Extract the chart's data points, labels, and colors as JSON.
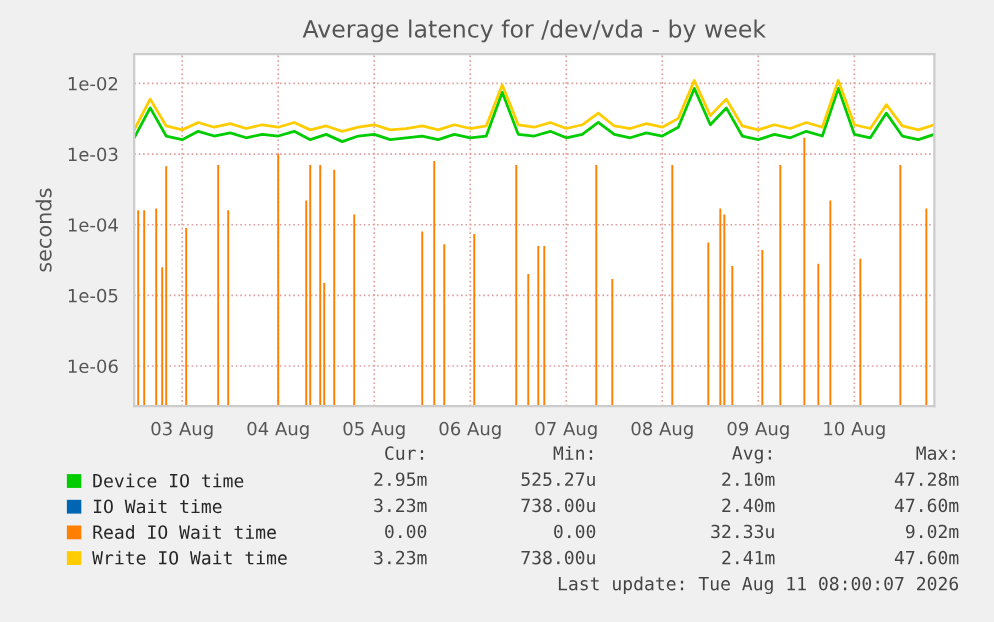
{
  "chart_data": {
    "type": "line",
    "title": "Average latency for /dev/vda - by week",
    "ylabel": "seconds",
    "log": "y",
    "grid": true,
    "legend": "bottom",
    "line_style": "solid",
    "marker": "none",
    "x": [
      "2026-08-03T00:00",
      "2026-08-03T04:00",
      "2026-08-03T08:00",
      "2026-08-03T12:00",
      "2026-08-03T16:00",
      "2026-08-03T20:00",
      "2026-08-04T00:00",
      "2026-08-04T04:00",
      "2026-08-04T08:00",
      "2026-08-04T12:00",
      "2026-08-04T16:00",
      "2026-08-04T20:00",
      "2026-08-05T00:00",
      "2026-08-05T04:00",
      "2026-08-05T08:00",
      "2026-08-05T12:00",
      "2026-08-05T16:00",
      "2026-08-05T20:00",
      "2026-08-06T00:00",
      "2026-08-06T04:00",
      "2026-08-06T08:00",
      "2026-08-06T12:00",
      "2026-08-06T16:00",
      "2026-08-06T20:00",
      "2026-08-07T00:00",
      "2026-08-07T04:00",
      "2026-08-07T08:00",
      "2026-08-07T12:00",
      "2026-08-07T16:00",
      "2026-08-07T20:00",
      "2026-08-08T00:00",
      "2026-08-08T04:00",
      "2026-08-08T08:00",
      "2026-08-08T12:00",
      "2026-08-08T16:00",
      "2026-08-08T20:00",
      "2026-08-09T00:00",
      "2026-08-09T04:00",
      "2026-08-09T08:00",
      "2026-08-09T12:00",
      "2026-08-09T16:00",
      "2026-08-09T20:00",
      "2026-08-10T00:00",
      "2026-08-10T04:00",
      "2026-08-10T08:00",
      "2026-08-10T12:00",
      "2026-08-10T16:00",
      "2026-08-10T20:00",
      "2026-08-11T00:00",
      "2026-08-11T04:00",
      "2026-08-11T08:00"
    ],
    "xlim": [
      "2026-08-03T00:00",
      "2026-08-11T08:00"
    ],
    "xticks": [
      {
        "value": "2026-08-03T12:00",
        "label": "03 Aug"
      },
      {
        "value": "2026-08-04T12:00",
        "label": "04 Aug"
      },
      {
        "value": "2026-08-05T12:00",
        "label": "05 Aug"
      },
      {
        "value": "2026-08-06T12:00",
        "label": "06 Aug"
      },
      {
        "value": "2026-08-07T12:00",
        "label": "07 Aug"
      },
      {
        "value": "2026-08-08T12:00",
        "label": "08 Aug"
      },
      {
        "value": "2026-08-09T12:00",
        "label": "09 Aug"
      },
      {
        "value": "2026-08-10T12:00",
        "label": "10 Aug"
      }
    ],
    "ylim": [
      2.7e-07,
      0.026
    ],
    "yticks": [
      {
        "value": 1e-06,
        "label": "1e-06"
      },
      {
        "value": 1e-05,
        "label": "1e-05"
      },
      {
        "value": 0.0001,
        "label": "1e-04"
      },
      {
        "value": 0.001,
        "label": "1e-03"
      },
      {
        "value": 0.01,
        "label": "1e-02"
      }
    ],
    "series": [
      {
        "name": "Device IO time",
        "color": "#00cc00",
        "values": [
          0.0017,
          0.0045,
          0.0018,
          0.0016,
          0.0021,
          0.0018,
          0.002,
          0.0017,
          0.0019,
          0.0018,
          0.0021,
          0.0016,
          0.0019,
          0.0015,
          0.0018,
          0.0019,
          0.0016,
          0.0017,
          0.0018,
          0.0016,
          0.0019,
          0.0017,
          0.0018,
          0.0075,
          0.0019,
          0.0018,
          0.0021,
          0.0017,
          0.0019,
          0.0028,
          0.0019,
          0.0017,
          0.002,
          0.0018,
          0.0024,
          0.0085,
          0.0026,
          0.0045,
          0.0018,
          0.0016,
          0.0019,
          0.0017,
          0.0021,
          0.0018,
          0.0085,
          0.0019,
          0.0017,
          0.0038,
          0.0018,
          0.0016,
          0.0019
        ]
      },
      {
        "name": "IO Wait time",
        "color": "#0066b3",
        "values": [
          null,
          null,
          null,
          null,
          null,
          null,
          null,
          null,
          null,
          null,
          null,
          null,
          null,
          null,
          null,
          null,
          null,
          null,
          null,
          null,
          null,
          null,
          null,
          null,
          null,
          null,
          null,
          null,
          null,
          null,
          null,
          null,
          null,
          null,
          null,
          null,
          null,
          null,
          null,
          null,
          null,
          null,
          null,
          null,
          null,
          null,
          null,
          null,
          null,
          null,
          null
        ]
      },
      {
        "name": "Read IO Wait time",
        "color": "#ff8000",
        "type": "bar",
        "x": [
          "2026-08-03T01:00",
          "2026-08-03T02:30",
          "2026-08-03T05:30",
          "2026-08-03T07:00",
          "2026-08-03T08:00",
          "2026-08-03T13:00",
          "2026-08-03T21:00",
          "2026-08-03T23:30",
          "2026-08-04T12:00",
          "2026-08-04T19:00",
          "2026-08-04T20:00",
          "2026-08-04T22:30",
          "2026-08-04T23:30",
          "2026-08-05T02:00",
          "2026-08-05T07:00",
          "2026-08-06T00:00",
          "2026-08-06T03:00",
          "2026-08-06T05:30",
          "2026-08-06T13:00",
          "2026-08-06T23:30",
          "2026-08-07T02:30",
          "2026-08-07T05:00",
          "2026-08-07T06:30",
          "2026-08-07T19:30",
          "2026-08-07T23:30",
          "2026-08-08T14:30",
          "2026-08-08T23:30",
          "2026-08-09T02:30",
          "2026-08-09T03:30",
          "2026-08-09T05:30",
          "2026-08-09T13:00",
          "2026-08-09T17:30",
          "2026-08-09T23:30",
          "2026-08-10T03:00",
          "2026-08-10T06:00",
          "2026-08-10T13:30",
          "2026-08-10T23:30",
          "2026-08-11T06:00"
        ],
        "values": [
          0.00016,
          0.00016,
          0.00017,
          2.5e-05,
          0.00067,
          9e-05,
          0.0007,
          0.00016,
          0.001,
          0.00022,
          0.0007,
          0.0007,
          1.5e-05,
          0.0006,
          0.00014,
          8e-05,
          0.0008,
          5.3e-05,
          7.4e-05,
          0.0007,
          2e-05,
          5e-05,
          5e-05,
          0.0007,
          1.7e-05,
          0.0007,
          5.6e-05,
          0.00017,
          0.00014,
          2.6e-05,
          4.4e-05,
          0.0007,
          0.0017,
          2.8e-05,
          0.00022,
          3.3e-05,
          0.0007,
          0.00017
        ]
      },
      {
        "name": "Write IO Wait time",
        "color": "#ffcc00",
        "values": [
          0.0022,
          0.006,
          0.0025,
          0.0022,
          0.0028,
          0.0024,
          0.0027,
          0.0023,
          0.0026,
          0.0024,
          0.0028,
          0.0022,
          0.0025,
          0.0021,
          0.0024,
          0.0026,
          0.0022,
          0.0023,
          0.0025,
          0.0022,
          0.0026,
          0.0023,
          0.0025,
          0.0095,
          0.0026,
          0.0024,
          0.0028,
          0.0023,
          0.0026,
          0.0038,
          0.0025,
          0.0023,
          0.0027,
          0.0024,
          0.0032,
          0.011,
          0.0035,
          0.006,
          0.0025,
          0.0022,
          0.0026,
          0.0023,
          0.0028,
          0.0024,
          0.011,
          0.0026,
          0.0023,
          0.005,
          0.0025,
          0.0022,
          0.0026
        ]
      }
    ],
    "annotations": [
      "Cur:",
      "Min:",
      "Avg:",
      "Max:",
      "2.95m",
      "525.27u",
      "2.10m",
      "47.28m",
      "3.23m",
      "738.00u",
      "2.40m",
      "47.60m",
      "0.00",
      "0.00",
      "32.33u",
      "9.02m",
      "3.23m",
      "738.00u",
      "2.41m",
      "47.60m",
      "Last update: Tue Aug 11 08:00:07 2026"
    ]
  }
}
